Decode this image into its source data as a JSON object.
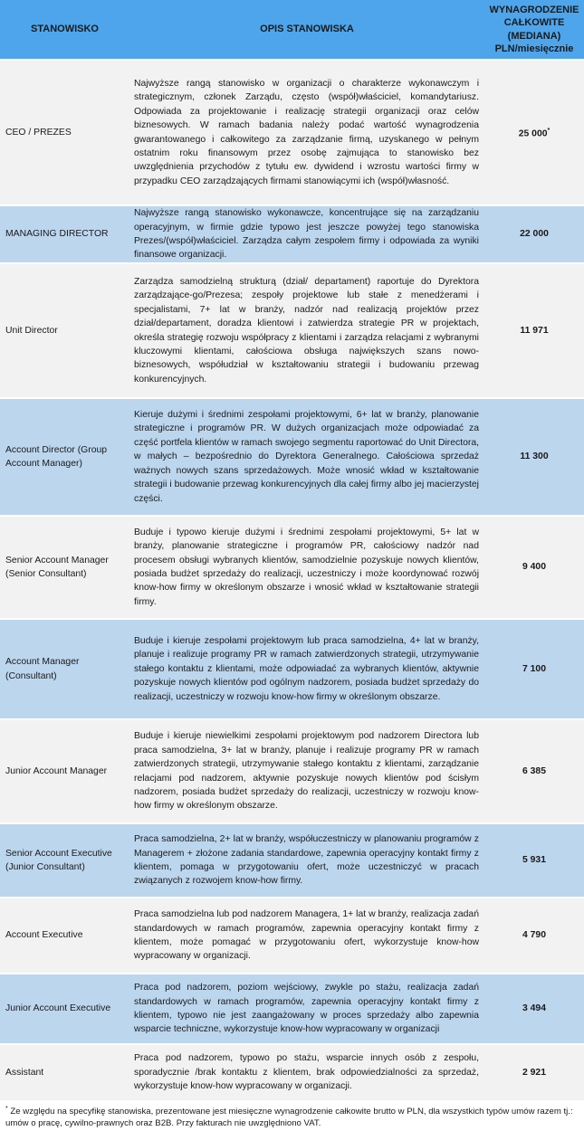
{
  "header": {
    "col_position": "STANOWISKO",
    "col_description": "OPIS STANOWISKA",
    "col_salary": "WYNAGRODZENIE CAŁKOWITE (MEDIANA) PLN/miesięcznie"
  },
  "colors": {
    "header": "#4ea5ec",
    "row_light": "#f2f2f2",
    "row_blue": "#bcd6ee"
  },
  "rows": [
    {
      "position": "CEO / PREZES",
      "description": "Najwyższe rangą stanowisko w organizacji o charakterze wykonawczym i strategicznym, członek Zarządu, często (współ)właściciel, komandytariusz. Odpowiada za projektowanie i realizację strategii organizacji oraz celów biznesowych. W ramach badania należy podać wartość wynagrodzenia gwarantowanego i całkowitego za zarządzanie firmą, uzyskanego w pełnym ostatnim roku finansowym przez osobę zajmująca to stanowisko bez uwzględnienia przychodów z tytułu ew. dywidend i wzrostu wartości firmy w przypadku CEO zarządzających firmami stanowiącymi ich (współ)własność.",
      "salary": "25 000",
      "note_mark": "*"
    },
    {
      "position": "MANAGING DIRECTOR",
      "description": "Najwyższe rangą stanowisko wykonawcze, koncentrujące się na zarządzaniu operacyjnym, w firmie gdzie typowo jest jeszcze powyżej tego stanowiska Prezes/(współ)właściciel. Zarządza całym zespołem firmy i odpowiada za wyniki finansowe organizacji.",
      "salary": "22 000"
    },
    {
      "position": "Unit Director",
      "description": "Zarządza samodzielną strukturą (dział/ departament) raportuje do Dyrektora zarządzające-go/Prezesa; zespoły projektowe lub stałe z menedżerami i specjalistami, 7+ lat w branży, nadzór nad realizacją projektów przez dział/departament, doradza klientowi i zatwierdza strategie PR w projektach, określa strategię rozwoju współpracy z klientami i zarządza relacjami z wybranymi kluczowymi klientami, całościowa obsługa największych szans nowo- biznesowych, współudział w kształtowaniu strategii i budowaniu przewag konkurencyjnych.",
      "salary": "11 971"
    },
    {
      "position": "Account Director (Group Account Manager)",
      "description": "Kieruje dużymi i średnimi zespołami projektowymi, 6+ lat w branży, planowanie strategiczne i programów PR. W dużych organizacjach może odpowiadać za część portfela klientów w ramach swojego segmentu raportować do Unit Directora, w małych – bezpośrednio do Dyrektora Generalnego. Całościowa sprzedaż ważnych nowych szans sprzedażowych. Może wnosić wkład w kształtowanie strategii i budowanie przewag konkurencyjnych dla całej firmy albo jej macierzystej części.",
      "salary": "11 300"
    },
    {
      "position": "Senior Account Manager (Senior Consultant)",
      "description": "Buduje i typowo kieruje dużymi i średnimi zespołami projektowymi, 5+ lat w branży, planowanie strategiczne i programów PR, całościowy nadzór nad procesem obsługi wybranych klientów, samodzielnie pozyskuje nowych klientów, posiada budżet sprzedaży do realizacji, uczestniczy i może koordynować rozwój know-how firmy w określonym obszarze i wnosić wkład w kształtowanie strategii firmy.",
      "salary": "9 400"
    },
    {
      "position": "Account Manager (Consultant)",
      "description": "Buduje i kieruje zespołami projektowym lub praca samodzielna, 4+ lat w branży, planuje i realizuje programy PR w ramach zatwierdzonych strategii, utrzymywanie stałego kontaktu z klientami, może odpowiadać za wybranych klientów, aktywnie pozyskuje nowych klientów pod ogólnym nadzorem, posiada budżet sprzedaży do realizacji, uczestniczy w rozwoju know-how firmy w określonym obszarze.",
      "salary": "7 100"
    },
    {
      "position": "Junior Account Manager",
      "description": "Buduje i kieruje niewielkimi zespołami projektowym pod nadzorem Directora lub praca samodzielna, 3+ lat w branży, planuje i realizuje programy PR w ramach zatwierdzonych strategii, utrzymywanie stałego kontaktu z klientami, zarządzanie relacjami pod nadzorem, aktywnie pozyskuje nowych klientów pod ścisłym nadzorem, posiada budżet sprzedaży do realizacji, uczestniczy w rozwoju know-how firmy w określonym obszarze.",
      "salary": "6 385"
    },
    {
      "position": "Senior Account Executive (Junior Consultant)",
      "description": "Praca samodzielna, 2+ lat w branży, współuczestniczy w planowaniu programów z Managerem + złożone zadania standardowe, zapewnia operacyjny kontakt firmy z klientem, pomaga w przygotowaniu ofert, może uczestniczyć w pracach związanych z rozwojem know-how firmy.",
      "salary": "5 931"
    },
    {
      "position": "Account Executive",
      "description": "Praca samodzielna lub pod nadzorem Managera, 1+ lat w branży, realizacja zadań standardowych w ramach programów, zapewnia operacyjny kontakt firmy z klientem, może pomagać w przygotowaniu ofert, wykorzystuje know-how wypracowany w organizacji.",
      "salary": "4 790"
    },
    {
      "position": "Junior Account Executive",
      "description": "Praca pod nadzorem, poziom wejściowy, zwykle po stażu, realizacja zadań standardowych w ramach programów, zapewnia operacyjny kontakt firmy z klientem, typowo nie jest zaangażowany w proces sprzedaży albo zapewnia wsparcie techniczne, wykorzystuje know-how wypracowany w organizacji",
      "salary": "3 494"
    },
    {
      "position": "Assistant",
      "description": "Praca pod nadzorem, typowo po stażu, wsparcie innych osób z zespołu, sporadycznie /brak kontaktu z klientem, brak odpowiedzialności za sprzedaż, wykorzystuje know-how wypracowany w organizacji.",
      "salary": "2 921"
    }
  ],
  "footnote": {
    "mark": "*",
    "text": "Ze względu na specyfikę stanowiska, prezentowane jest miesięczne wynagrodzenie całkowite brutto w PLN, dla wszystkich typów umów razem tj.: umów o pracę, cywilno-prawnych oraz B2B. Przy fakturach nie uwzględniono VAT."
  }
}
